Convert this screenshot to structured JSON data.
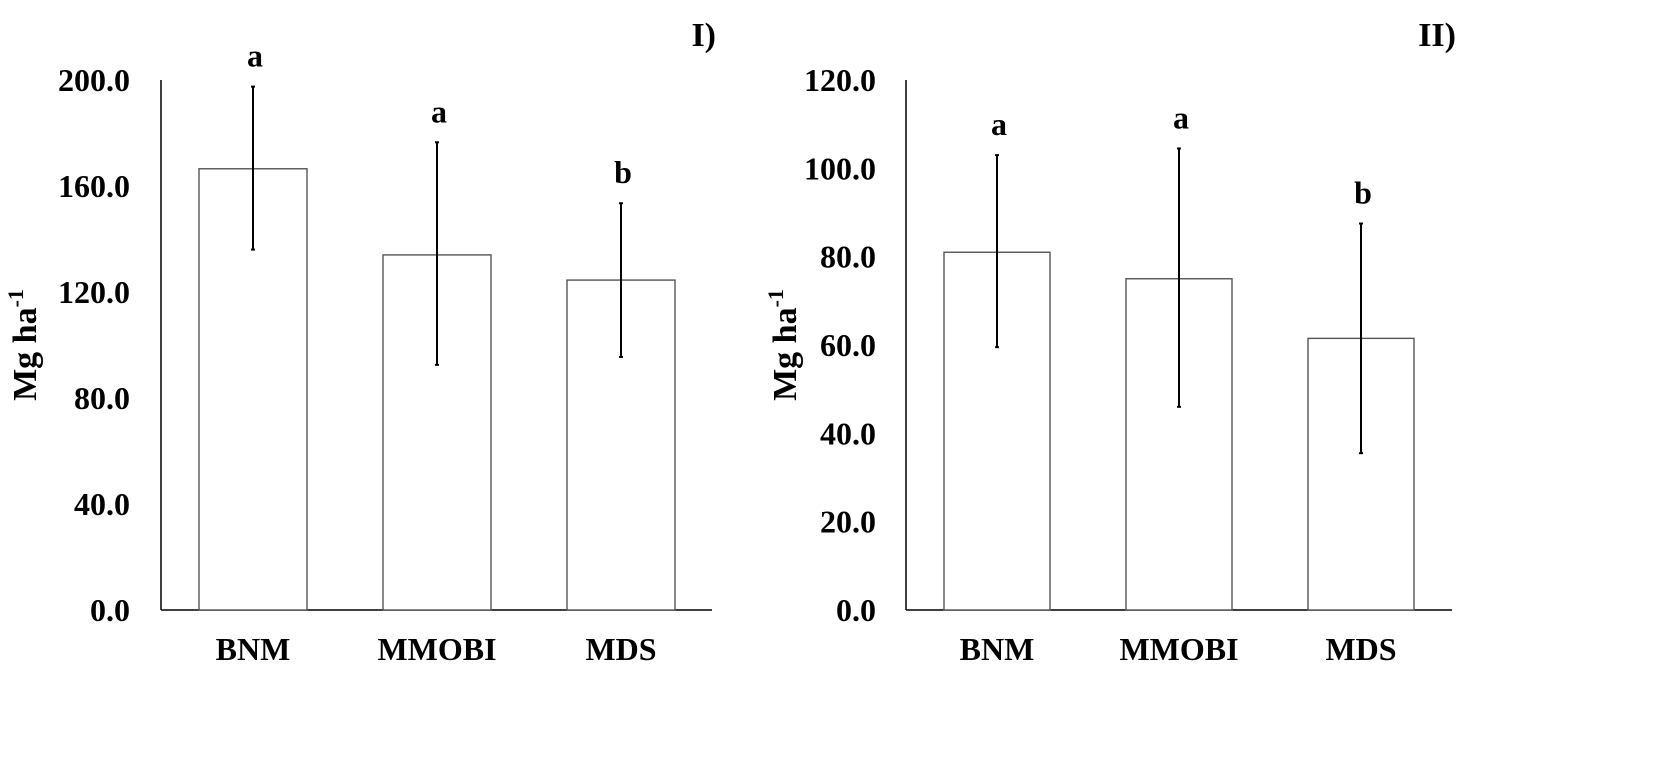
{
  "chart_data": [
    {
      "panel_label": "I)",
      "type": "bar",
      "ylabel": "Mg ha",
      "ylabel_sup": "-1",
      "ylim": [
        0,
        200
      ],
      "yticks": [
        0,
        40,
        80,
        120,
        160,
        200
      ],
      "ytick_labels": [
        "0.0",
        "40.0",
        "80.0",
        "120.0",
        "160.0",
        "200.0"
      ],
      "categories": [
        "BNM",
        "MMOBI",
        "MDS"
      ],
      "values": [
        166.5,
        134.0,
        124.5
      ],
      "error_low": [
        136.0,
        92.5,
        95.5
      ],
      "error_high": [
        197.5,
        176.5,
        153.5
      ],
      "significance": [
        "a",
        "a",
        "b"
      ]
    },
    {
      "panel_label": "II)",
      "type": "bar",
      "ylabel": "Mg ha",
      "ylabel_sup": "-1",
      "ylim": [
        0,
        120
      ],
      "yticks": [
        0,
        20,
        40,
        60,
        80,
        100,
        120
      ],
      "ytick_labels": [
        "0.0",
        "20.0",
        "40.0",
        "60.0",
        "80.0",
        "100.0",
        "120.0"
      ],
      "categories": [
        "BNM",
        "MMOBI",
        "MDS"
      ],
      "values": [
        81.0,
        75.0,
        61.5
      ],
      "error_low": [
        59.5,
        46.0,
        35.5
      ],
      "error_high": [
        103.0,
        104.5,
        87.5
      ],
      "significance": [
        "a",
        "a",
        "b"
      ]
    }
  ]
}
